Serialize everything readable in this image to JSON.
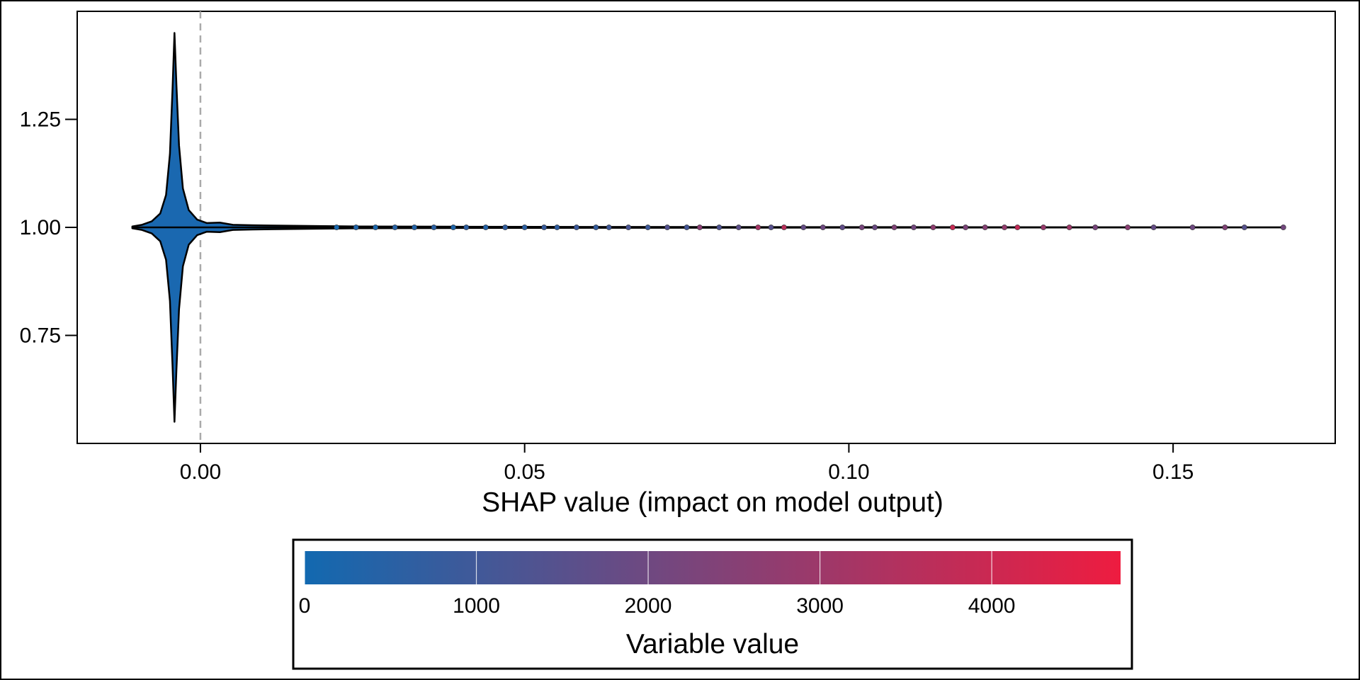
{
  "chart_data": {
    "type": "scatter",
    "subtype": "violin-beeswarm",
    "title": "",
    "xlabel": "SHAP value (impact on model output)",
    "ylabel": "",
    "xlim": [
      -0.019,
      0.175
    ],
    "ylim": [
      0.5,
      1.5
    ],
    "x_ticks": [
      0.0,
      0.05,
      0.1,
      0.15
    ],
    "x_tick_labels": [
      "0.00",
      "0.05",
      "0.10",
      "0.15"
    ],
    "y_ticks": [
      0.75,
      1.0,
      1.25
    ],
    "y_tick_labels": [
      "0.75",
      "1.00",
      "1.25"
    ],
    "grid": false,
    "reference_line": {
      "x": 0.0,
      "style": "dashed",
      "color": "#aaaaaa"
    },
    "violin": {
      "center_y": 1.0,
      "profile": [
        {
          "x": -0.0105,
          "half_width": 0.002
        },
        {
          "x": -0.009,
          "half_width": 0.006
        },
        {
          "x": -0.0075,
          "half_width": 0.014
        },
        {
          "x": -0.0062,
          "half_width": 0.032
        },
        {
          "x": -0.0053,
          "half_width": 0.075
        },
        {
          "x": -0.0047,
          "half_width": 0.17
        },
        {
          "x": -0.0043,
          "half_width": 0.32
        },
        {
          "x": -0.004,
          "half_width": 0.45
        },
        {
          "x": -0.0037,
          "half_width": 0.33
        },
        {
          "x": -0.0033,
          "half_width": 0.19
        },
        {
          "x": -0.0027,
          "half_width": 0.09
        },
        {
          "x": -0.0018,
          "half_width": 0.04
        },
        {
          "x": -0.0005,
          "half_width": 0.018
        },
        {
          "x": 0.001,
          "half_width": 0.01
        },
        {
          "x": 0.003,
          "half_width": 0.011
        },
        {
          "x": 0.005,
          "half_width": 0.006
        },
        {
          "x": 0.008,
          "half_width": 0.005
        },
        {
          "x": 0.012,
          "half_width": 0.004
        },
        {
          "x": 0.018,
          "half_width": 0.003
        },
        {
          "x": 0.025,
          "half_width": 0.002
        },
        {
          "x": 0.04,
          "half_width": 0.0015
        },
        {
          "x": 0.06,
          "half_width": 0.001
        },
        {
          "x": 0.167,
          "half_width": 0.0
        }
      ],
      "fill_color": "#1a68b0",
      "outline_color": "#000000"
    },
    "points": [
      {
        "x": 0.021,
        "value": 120
      },
      {
        "x": 0.024,
        "value": 300
      },
      {
        "x": 0.027,
        "value": 200
      },
      {
        "x": 0.03,
        "value": 450
      },
      {
        "x": 0.033,
        "value": 350
      },
      {
        "x": 0.036,
        "value": 500
      },
      {
        "x": 0.039,
        "value": 250
      },
      {
        "x": 0.041,
        "value": 600
      },
      {
        "x": 0.044,
        "value": 400
      },
      {
        "x": 0.047,
        "value": 700
      },
      {
        "x": 0.05,
        "value": 550
      },
      {
        "x": 0.053,
        "value": 800
      },
      {
        "x": 0.055,
        "value": 650
      },
      {
        "x": 0.058,
        "value": 900
      },
      {
        "x": 0.061,
        "value": 750
      },
      {
        "x": 0.063,
        "value": 1000
      },
      {
        "x": 0.066,
        "value": 1200
      },
      {
        "x": 0.069,
        "value": 950
      },
      {
        "x": 0.072,
        "value": 1400
      },
      {
        "x": 0.075,
        "value": 1100
      },
      {
        "x": 0.077,
        "value": 2600
      },
      {
        "x": 0.08,
        "value": 1300
      },
      {
        "x": 0.083,
        "value": 1600
      },
      {
        "x": 0.086,
        "value": 3200
      },
      {
        "x": 0.088,
        "value": 1500
      },
      {
        "x": 0.09,
        "value": 3600
      },
      {
        "x": 0.093,
        "value": 1800
      },
      {
        "x": 0.096,
        "value": 2000
      },
      {
        "x": 0.099,
        "value": 1700
      },
      {
        "x": 0.102,
        "value": 2200
      },
      {
        "x": 0.104,
        "value": 1900
      },
      {
        "x": 0.107,
        "value": 2400
      },
      {
        "x": 0.11,
        "value": 2100
      },
      {
        "x": 0.113,
        "value": 2700
      },
      {
        "x": 0.116,
        "value": 3900
      },
      {
        "x": 0.118,
        "value": 2300
      },
      {
        "x": 0.121,
        "value": 2500
      },
      {
        "x": 0.124,
        "value": 2800
      },
      {
        "x": 0.126,
        "value": 3800
      },
      {
        "x": 0.13,
        "value": 2900
      },
      {
        "x": 0.134,
        "value": 3000
      },
      {
        "x": 0.138,
        "value": 2200
      },
      {
        "x": 0.143,
        "value": 2600
      },
      {
        "x": 0.147,
        "value": 1800
      },
      {
        "x": 0.153,
        "value": 2000
      },
      {
        "x": 0.158,
        "value": 2400
      },
      {
        "x": 0.161,
        "value": 1500
      },
      {
        "x": 0.167,
        "value": 2100
      }
    ],
    "colorbar": {
      "title": "Variable value",
      "min": 0,
      "max": 4750,
      "ticks": [
        0,
        1000,
        2000,
        3000,
        4000
      ],
      "tick_labels": [
        "0",
        "1000",
        "2000",
        "3000",
        "4000"
      ],
      "color_low": "#1269b0",
      "color_high": "#ee1c40",
      "placement": "bottom"
    }
  }
}
